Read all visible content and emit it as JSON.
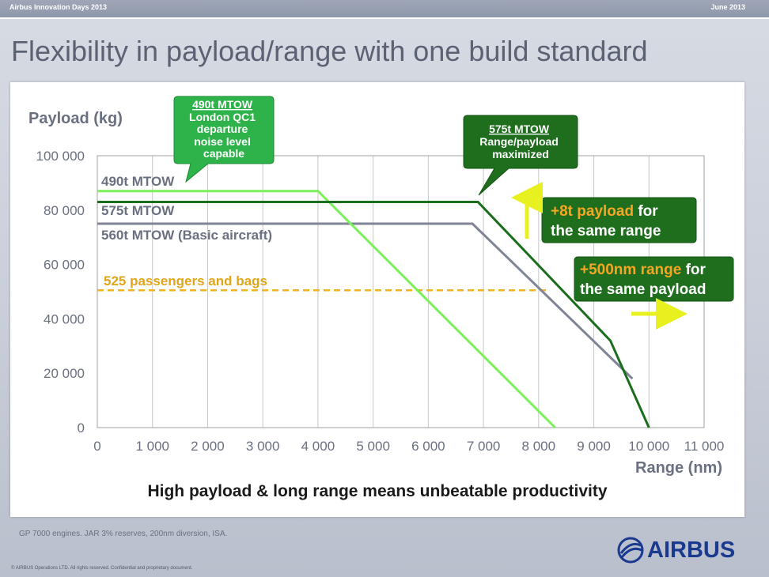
{
  "header": {
    "left_text": "Airbus Innovation Days 2013",
    "right_text": "June 2013"
  },
  "slide_title": "Flexibility in payload/range with one build standard",
  "footnote": "GP 7000 engines.  JAR 3% reserves, 200nm diversion, ISA.",
  "copyright": "© AIRBUS Operations LTD. All rights reserved. Confidential and proprietary document.",
  "logo_text": "AIRBUS",
  "chart_data": {
    "type": "line",
    "ylabel": "Payload (kg)",
    "xlabel": "Range (nm)",
    "xlim": [
      0,
      11000
    ],
    "ylim": [
      0,
      100000
    ],
    "x_ticks": [
      0,
      1000,
      2000,
      3000,
      4000,
      5000,
      6000,
      7000,
      8000,
      9000,
      10000,
      11000
    ],
    "x_tick_labels": [
      "0",
      "1 000",
      "2 000",
      "3 000",
      "4 000",
      "5 000",
      "6 000",
      "7 000",
      "8 000",
      "9 000",
      "10 000",
      "11 000"
    ],
    "y_ticks": [
      0,
      20000,
      40000,
      60000,
      80000,
      100000
    ],
    "y_tick_labels": [
      "0",
      "20 000",
      "40 000",
      "60 000",
      "80 000",
      "100 000"
    ],
    "grid": "vertical",
    "series": [
      {
        "name": "490t MTOW",
        "color": "#7cf05a",
        "x": [
          0,
          4000,
          8300
        ],
        "y": [
          87000,
          87000,
          0
        ]
      },
      {
        "name": "575t MTOW",
        "color": "#1b6e1b",
        "x": [
          0,
          6900,
          9300,
          10000
        ],
        "y": [
          83000,
          83000,
          32000,
          0
        ]
      },
      {
        "name": "560t MTOW (Basic aircraft)",
        "color": "#7f8596",
        "x": [
          0,
          6800,
          9700
        ],
        "y": [
          75000,
          75000,
          18000
        ]
      }
    ],
    "reference_line": {
      "label": "525 passengers and bags",
      "y": 50500,
      "color": "#f0b323"
    },
    "callouts": {
      "c490": [
        "490t MTOW",
        "London QC1",
        "departure",
        "noise level",
        "capable"
      ],
      "c575": [
        "575t MTOW",
        "Range/payload",
        "maximized"
      ]
    },
    "annotations": {
      "payload": {
        "highlight": "+8t payload",
        "rest1": " for",
        "line2": "the same range"
      },
      "range": {
        "highlight": "+500nm range",
        "rest1": " for",
        "line2": "the same payload"
      }
    },
    "subtitle": "High payload & long range means unbeatable productivity"
  }
}
